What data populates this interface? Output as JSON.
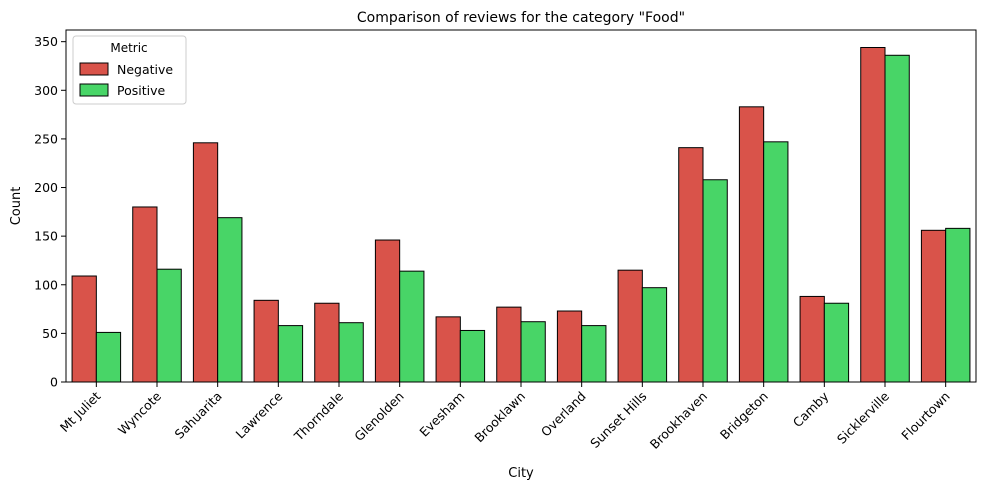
{
  "chart_data": {
    "type": "bar",
    "title": "Comparison of reviews for the category \"Food\"",
    "xlabel": "City",
    "ylabel": "Count",
    "ylim": [
      0,
      362
    ],
    "yticks": [
      0,
      50,
      100,
      150,
      200,
      250,
      300,
      350
    ],
    "grid": false,
    "legend": {
      "title": "Metric",
      "placement": "top-left"
    },
    "categories": [
      "Mt Juliet",
      "Wyncote",
      "Sahuarita",
      "Lawrence",
      "Thorndale",
      "Glenolden",
      "Evesham",
      "Brooklawn",
      "Overland",
      "Sunset Hills",
      "Brookhaven",
      "Bridgeton",
      "Camby",
      "Sicklerville",
      "Flourtown"
    ],
    "series": [
      {
        "name": "Negative",
        "color": "#d9534a",
        "values": [
          109,
          180,
          246,
          84,
          81,
          146,
          67,
          77,
          73,
          115,
          241,
          283,
          88,
          344,
          156
        ]
      },
      {
        "name": "Positive",
        "color": "#48d567",
        "values": [
          51,
          116,
          169,
          58,
          61,
          114,
          53,
          62,
          58,
          97,
          208,
          247,
          81,
          336,
          158
        ]
      }
    ]
  }
}
